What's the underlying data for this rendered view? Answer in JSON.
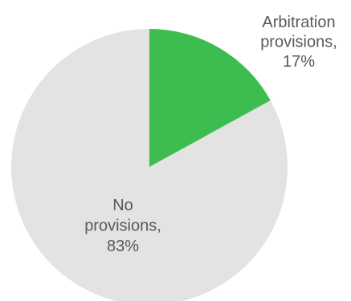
{
  "chart_data": {
    "type": "pie",
    "slices": [
      {
        "category": "Arbitration provisions",
        "value": 17,
        "label_lines": [
          "Arbitration",
          "provisions,",
          "17%"
        ],
        "color": "#3dbd4f"
      },
      {
        "category": "No provisions",
        "value": 83,
        "label_lines": [
          "No",
          "provisions,",
          "83%"
        ],
        "color": "#e3e3e3"
      }
    ],
    "start_angle": "12 o'clock",
    "direction": "clockwise",
    "label_color": "#595959"
  }
}
